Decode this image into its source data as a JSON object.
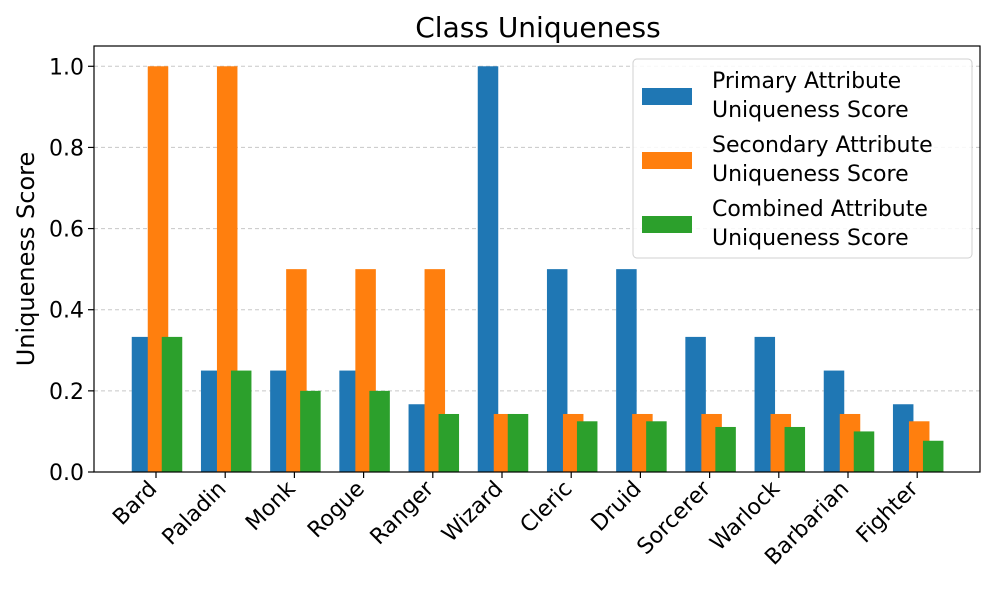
{
  "chart_data": {
    "type": "bar",
    "title": "Class Uniqueness",
    "xlabel": "",
    "ylabel": "Uniqueness Score",
    "ylim": [
      0,
      1.05
    ],
    "yticks": [
      0.0,
      0.2,
      0.4,
      0.6,
      0.8,
      1.0
    ],
    "ytick_labels": [
      "0.0",
      "0.2",
      "0.4",
      "0.6",
      "0.8",
      "1.0"
    ],
    "grid": "horizontal-dashed",
    "legend_position": "top-right",
    "categories": [
      "Bard",
      "Paladin",
      "Monk",
      "Rogue",
      "Ranger",
      "Wizard",
      "Cleric",
      "Druid",
      "Sorcerer",
      "Warlock",
      "Barbarian",
      "Fighter"
    ],
    "series": [
      {
        "name": "Primary Attribute Uniqueness Score",
        "legend_lines": [
          "Primary Attribute",
          "Uniqueness Score"
        ],
        "color": "#1f77b4",
        "values": [
          0.333,
          0.25,
          0.25,
          0.25,
          0.167,
          1.0,
          0.5,
          0.5,
          0.333,
          0.333,
          0.25,
          0.167
        ]
      },
      {
        "name": "Secondary Attribute Uniqueness Score",
        "legend_lines": [
          "Secondary Attribute",
          "Uniqueness Score"
        ],
        "color": "#ff7f0e",
        "values": [
          1.0,
          1.0,
          0.5,
          0.5,
          0.5,
          0.143,
          0.143,
          0.143,
          0.143,
          0.143,
          0.143,
          0.125
        ]
      },
      {
        "name": "Combined Attribute Uniqueness Score",
        "legend_lines": [
          "Combined Attribute",
          "Uniqueness Score"
        ],
        "color": "#2ca02c",
        "values": [
          0.333,
          0.25,
          0.2,
          0.2,
          0.143,
          0.143,
          0.125,
          0.125,
          0.111,
          0.111,
          0.1,
          0.077
        ]
      }
    ]
  }
}
